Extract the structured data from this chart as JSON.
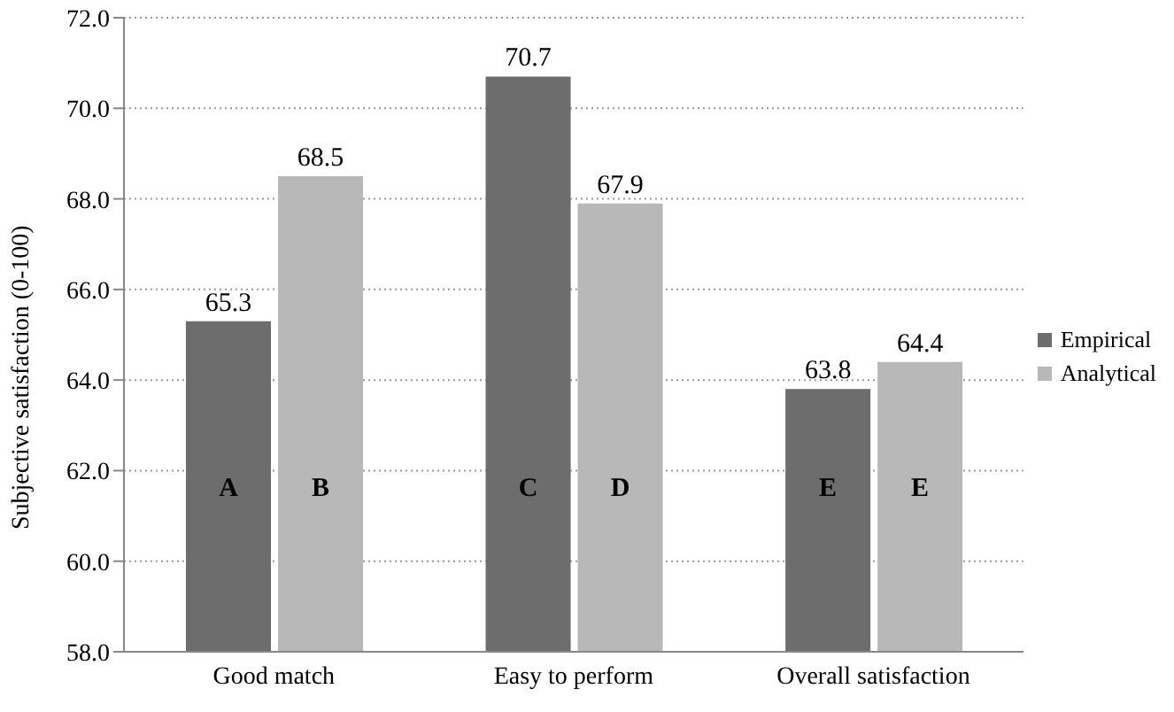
{
  "chart_data": {
    "type": "bar",
    "ylabel": "Subjective satisfaction (0-100)",
    "categories": [
      "Good match",
      "Easy to perform",
      "Overall satisfaction"
    ],
    "series": [
      {
        "name": "Empirical",
        "color": "#6d6d6d",
        "values": [
          65.3,
          70.7,
          63.8
        ]
      },
      {
        "name": "Analytical",
        "color": "#b8b8b8",
        "values": [
          68.5,
          67.9,
          64.4
        ]
      }
    ],
    "ylim": [
      58,
      72
    ],
    "yticks": [
      {
        "value": 58,
        "label": "58.0"
      },
      {
        "value": 60,
        "label": "60.0"
      },
      {
        "value": 62,
        "label": "62.0"
      },
      {
        "value": 64,
        "label": "64.0"
      },
      {
        "value": 66,
        "label": "66.0"
      },
      {
        "value": 68,
        "label": "68.0"
      },
      {
        "value": 70,
        "label": "70.0"
      },
      {
        "value": 72,
        "label": "72.0"
      }
    ],
    "grid": "y",
    "legend": "right",
    "data_labels": true,
    "annotations": [
      {
        "text": "A",
        "x": "Good match",
        "y": 61.6
      },
      {
        "text": "B",
        "x": "Good match",
        "y": 61.6
      },
      {
        "text": "C",
        "x": "Easy to perform",
        "y": 61.6
      },
      {
        "text": "D",
        "x": "Easy to perform",
        "y": 61.6
      },
      {
        "text": "E",
        "x": "Overall satisfaction",
        "y": 61.6
      },
      {
        "text": "E",
        "x": "Overall satisfaction",
        "y": 61.6
      }
    ]
  }
}
